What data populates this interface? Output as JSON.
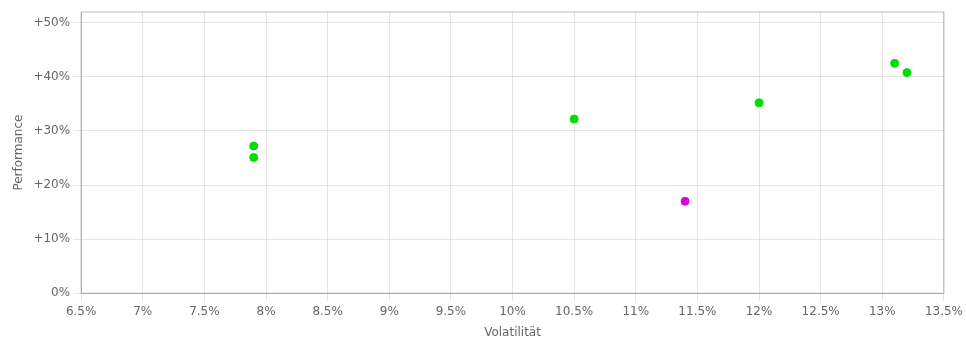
{
  "chart_data": {
    "type": "scatter",
    "xlabel": "Volatilität",
    "ylabel": "Performance",
    "xlim": [
      0.065,
      0.135
    ],
    "ylim": [
      0.0,
      0.52
    ],
    "xticks": [
      {
        "value": 0.065,
        "label": "6.5%"
      },
      {
        "value": 0.07,
        "label": "7%"
      },
      {
        "value": 0.075,
        "label": "7.5%"
      },
      {
        "value": 0.08,
        "label": "8%"
      },
      {
        "value": 0.085,
        "label": "8.5%"
      },
      {
        "value": 0.09,
        "label": "9%"
      },
      {
        "value": 0.095,
        "label": "9.5%"
      },
      {
        "value": 0.1,
        "label": "10%"
      },
      {
        "value": 0.105,
        "label": "10.5%"
      },
      {
        "value": 0.11,
        "label": "11%"
      },
      {
        "value": 0.115,
        "label": "11.5%"
      },
      {
        "value": 0.12,
        "label": "12%"
      },
      {
        "value": 0.125,
        "label": "12.5%"
      },
      {
        "value": 0.13,
        "label": "13%"
      },
      {
        "value": 0.135,
        "label": "13.5%"
      }
    ],
    "yticks": [
      {
        "value": 0.0,
        "label": "0%"
      },
      {
        "value": 0.1,
        "label": "+10%"
      },
      {
        "value": 0.2,
        "label": "+20%"
      },
      {
        "value": 0.3,
        "label": "+30%"
      },
      {
        "value": 0.4,
        "label": "+40%"
      },
      {
        "value": 0.5,
        "label": "+50%"
      }
    ],
    "grid": true,
    "series": [
      {
        "color": "#00dd00",
        "marker": "circle",
        "x": [
          0.079,
          0.079,
          0.105,
          0.12,
          0.131,
          0.132
        ],
        "values": [
          0.272,
          0.251,
          0.322,
          0.352,
          0.425,
          0.408
        ]
      },
      {
        "color": "#dd00dd",
        "marker": "circle",
        "x": [
          0.114
        ],
        "values": [
          0.17
        ]
      }
    ]
  }
}
